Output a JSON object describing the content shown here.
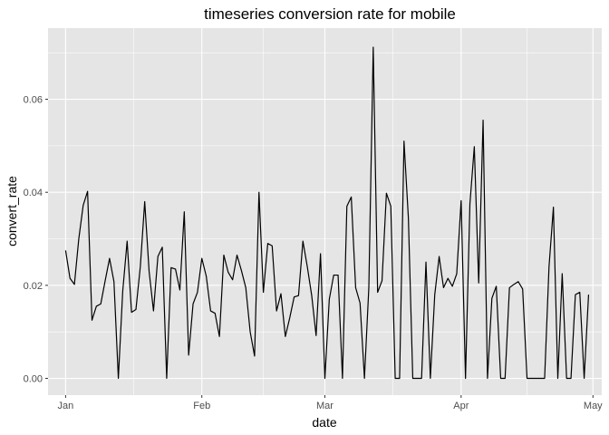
{
  "chart_data": {
    "type": "line",
    "title": "timeseries conversion rate for mobile",
    "xlabel": "date",
    "ylabel": "convert_rate",
    "x_ticks": [
      "Jan",
      "Feb",
      "Mar",
      "Apr",
      "May"
    ],
    "y_ticks": [
      "0.00",
      "0.02",
      "0.04",
      "0.06"
    ],
    "ylim": [
      -0.0036,
      0.0753
    ],
    "xlim": [
      "2014-12-28",
      "2015-05-03"
    ],
    "grid": true,
    "background": "#E5E5E5",
    "grid_color": "#FFFFFF",
    "line_color": "#000000",
    "series": [
      {
        "x": [
          "2015-01-01",
          "2015-01-02",
          "2015-01-03",
          "2015-01-04",
          "2015-01-05",
          "2015-01-06",
          "2015-01-07",
          "2015-01-08",
          "2015-01-09",
          "2015-01-10",
          "2015-01-11",
          "2015-01-12",
          "2015-01-13",
          "2015-01-14",
          "2015-01-15",
          "2015-01-16",
          "2015-01-17",
          "2015-01-18",
          "2015-01-19",
          "2015-01-20",
          "2015-01-21",
          "2015-01-22",
          "2015-01-23",
          "2015-01-24",
          "2015-01-25",
          "2015-01-26",
          "2015-01-27",
          "2015-01-28",
          "2015-01-29",
          "2015-01-30",
          "2015-01-31",
          "2015-02-01",
          "2015-02-02",
          "2015-02-03",
          "2015-02-04",
          "2015-02-05",
          "2015-02-06",
          "2015-02-07",
          "2015-02-08",
          "2015-02-09",
          "2015-02-10",
          "2015-02-11",
          "2015-02-12",
          "2015-02-13",
          "2015-02-14",
          "2015-02-15",
          "2015-02-16",
          "2015-02-17",
          "2015-02-18",
          "2015-02-19",
          "2015-02-20",
          "2015-02-21",
          "2015-02-22",
          "2015-02-23",
          "2015-02-24",
          "2015-02-25",
          "2015-02-26",
          "2015-02-27",
          "2015-02-28",
          "2015-03-01",
          "2015-03-02",
          "2015-03-03",
          "2015-03-04",
          "2015-03-05",
          "2015-03-06",
          "2015-03-07",
          "2015-03-08",
          "2015-03-09",
          "2015-03-10",
          "2015-03-11",
          "2015-03-12",
          "2015-03-13",
          "2015-03-14",
          "2015-03-15",
          "2015-03-16",
          "2015-03-17",
          "2015-03-18",
          "2015-03-19",
          "2015-03-20",
          "2015-03-21",
          "2015-03-22",
          "2015-03-23",
          "2015-03-24",
          "2015-03-25",
          "2015-03-26",
          "2015-03-27",
          "2015-03-28",
          "2015-03-29",
          "2015-03-30",
          "2015-03-31",
          "2015-04-01",
          "2015-04-02",
          "2015-04-03",
          "2015-04-04",
          "2015-04-05",
          "2015-04-06",
          "2015-04-07",
          "2015-04-08",
          "2015-04-09",
          "2015-04-10",
          "2015-04-11",
          "2015-04-12",
          "2015-04-13",
          "2015-04-14",
          "2015-04-15",
          "2015-04-16",
          "2015-04-17",
          "2015-04-18",
          "2015-04-19",
          "2015-04-20",
          "2015-04-21",
          "2015-04-22",
          "2015-04-23",
          "2015-04-24",
          "2015-04-25",
          "2015-04-26",
          "2015-04-27",
          "2015-04-28",
          "2015-04-29",
          "2015-04-30"
        ],
        "values": [
          0.0275,
          0.0215,
          0.0202,
          0.03,
          0.0372,
          0.0402,
          0.0125,
          0.0155,
          0.016,
          0.021,
          0.0258,
          0.0208,
          0.0,
          0.0188,
          0.0295,
          0.0142,
          0.0148,
          0.024,
          0.038,
          0.023,
          0.0145,
          0.0262,
          0.0282,
          0.0,
          0.0238,
          0.0235,
          0.019,
          0.0358,
          0.005,
          0.016,
          0.0185,
          0.0258,
          0.022,
          0.0145,
          0.014,
          0.009,
          0.0265,
          0.0228,
          0.0212,
          0.0265,
          0.0232,
          0.0195,
          0.01,
          0.0048,
          0.04,
          0.0185,
          0.029,
          0.0285,
          0.0145,
          0.0182,
          0.009,
          0.013,
          0.0175,
          0.0178,
          0.0295,
          0.024,
          0.0178,
          0.0092,
          0.0268,
          0.0,
          0.017,
          0.0222,
          0.0222,
          0.0,
          0.037,
          0.039,
          0.0195,
          0.0162,
          0.0,
          0.0195,
          0.0712,
          0.0185,
          0.021,
          0.0398,
          0.037,
          0.0,
          0.0,
          0.051,
          0.0345,
          0.0,
          0.0,
          0.0,
          0.025,
          0.0,
          0.018,
          0.0262,
          0.0195,
          0.0215,
          0.0198,
          0.0225,
          0.0382,
          0.0,
          0.0375,
          0.0498,
          0.0205,
          0.0555,
          0.0,
          0.0172,
          0.0198,
          0.0,
          0.0,
          0.0195,
          0.0202,
          0.0208,
          0.0192,
          0.0,
          0.0,
          0.0,
          0.0,
          0.0,
          0.024,
          0.0368,
          0.0,
          0.0225,
          0.0,
          0.0,
          0.018,
          0.0185,
          0.0,
          0.018
        ]
      }
    ]
  }
}
